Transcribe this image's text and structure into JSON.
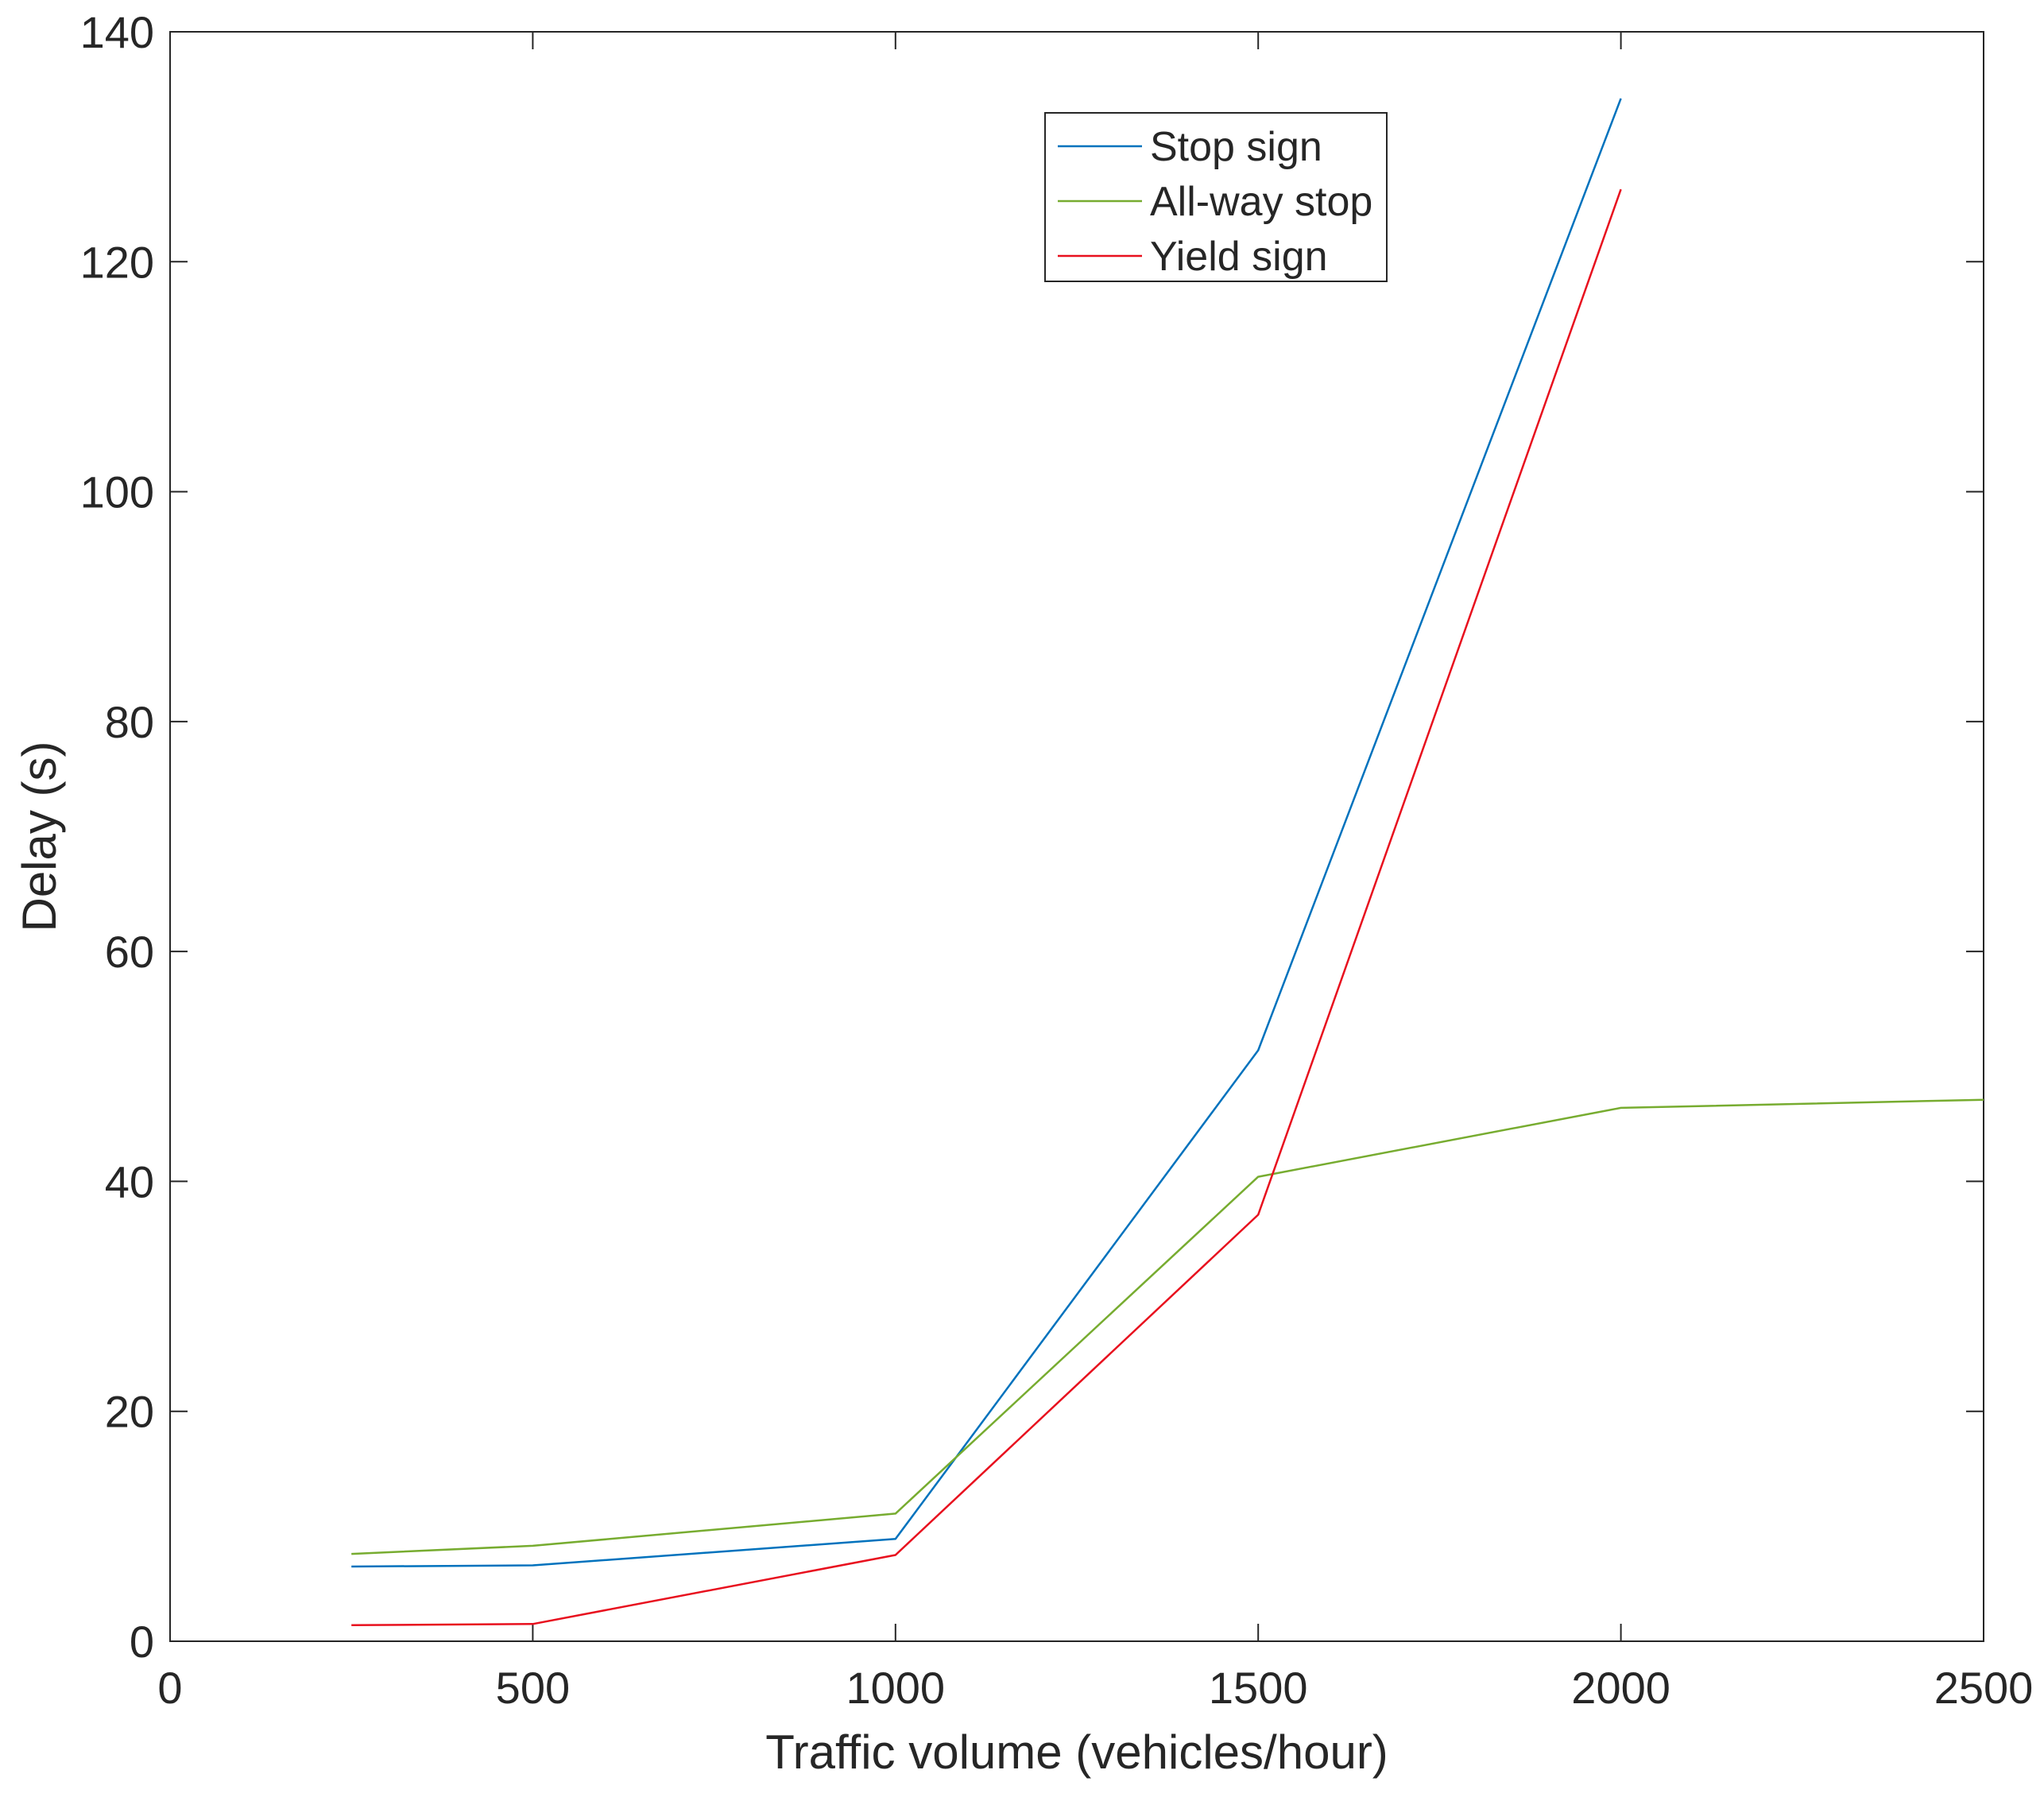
{
  "chart_data": {
    "type": "line",
    "title": "",
    "xlabel": "Traffic volume (vehicles/hour)",
    "ylabel": "Delay (s)",
    "xlim": [
      0,
      2500
    ],
    "ylim": [
      0,
      140
    ],
    "xticks": [
      0,
      500,
      1000,
      1500,
      2000,
      2500
    ],
    "yticks": [
      0,
      20,
      40,
      60,
      80,
      100,
      120,
      140
    ],
    "grid": false,
    "legend_position": "top-center-right",
    "series": [
      {
        "name": "Stop sign",
        "color": "#0072BD",
        "x": [
          250,
          500,
          1000,
          1500,
          2000
        ],
        "y": [
          6.5,
          6.6,
          8.9,
          51.4,
          134.2
        ]
      },
      {
        "name": "All-way stop",
        "color": "#77AC30",
        "x": [
          250,
          500,
          1000,
          1500,
          2000,
          2500
        ],
        "y": [
          7.6,
          8.3,
          11.1,
          40.4,
          46.4,
          47.1
        ]
      },
      {
        "name": "Yield sign",
        "color": "#E8101E",
        "x": [
          250,
          500,
          1000,
          1500,
          2000
        ],
        "y": [
          1.4,
          1.5,
          7.5,
          37.1,
          126.3
        ]
      }
    ]
  }
}
